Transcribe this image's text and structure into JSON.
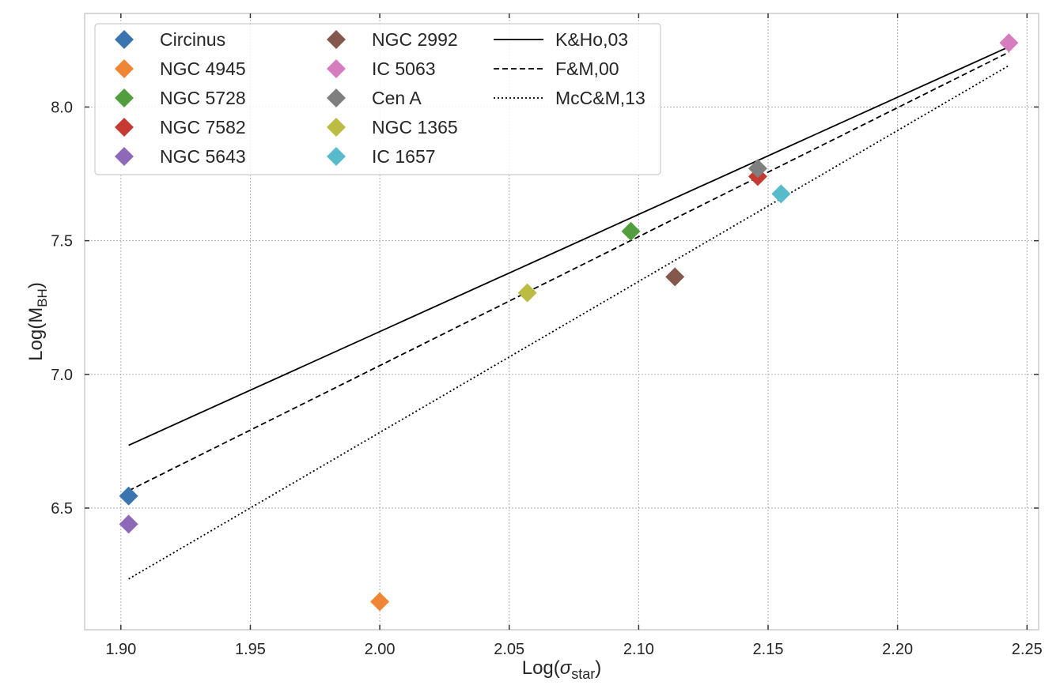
{
  "chart_data": {
    "type": "scatter",
    "title": "",
    "xlabel": {
      "main": "Log(",
      "symbol": "σ",
      "sub": "star",
      "close": ")"
    },
    "ylabel": {
      "main": "Log(M",
      "sub": "BH",
      "close": ")"
    },
    "xlim": [
      1.886,
      2.2545
    ],
    "ylim": [
      6.045,
      8.35
    ],
    "xticks": [
      1.9,
      1.95,
      2.0,
      2.05,
      2.1,
      2.15,
      2.2,
      2.25
    ],
    "xtick_labels": [
      "1.90",
      "1.95",
      "2.00",
      "2.05",
      "2.10",
      "2.15",
      "2.20",
      "2.25"
    ],
    "yticks": [
      6.5,
      7.0,
      7.5,
      8.0
    ],
    "ytick_labels": [
      "6.5",
      "7.0",
      "7.5",
      "8.0"
    ],
    "grid": true,
    "legend_position": "upper-left",
    "legend_columns": 3,
    "series": [
      {
        "name": "Circinus",
        "color": "#3a75af",
        "marker": "diamond",
        "x": 1.903,
        "y": 6.545
      },
      {
        "name": "NGC 4945",
        "color": "#ef8636",
        "marker": "diamond",
        "x": 2.0,
        "y": 6.15
      },
      {
        "name": "NGC 5728",
        "color": "#529e3e",
        "marker": "diamond",
        "x": 2.097,
        "y": 7.535
      },
      {
        "name": "NGC 7582",
        "color": "#c53a32",
        "marker": "diamond",
        "x": 2.146,
        "y": 7.74
      },
      {
        "name": "NGC 5643",
        "color": "#8d69b8",
        "marker": "diamond",
        "x": 1.903,
        "y": 6.44
      },
      {
        "name": "NGC 2992",
        "color": "#85584e",
        "marker": "diamond",
        "x": 2.114,
        "y": 7.365
      },
      {
        "name": "IC 5063",
        "color": "#d57dbe",
        "marker": "diamond",
        "x": 2.243,
        "y": 8.24
      },
      {
        "name": "Cen A",
        "color": "#7f7f7f",
        "marker": "diamond",
        "x": 2.146,
        "y": 7.77
      },
      {
        "name": "NGC 1365",
        "color": "#bcbc45",
        "marker": "diamond",
        "x": 2.057,
        "y": 7.305
      },
      {
        "name": "IC 1657",
        "color": "#58bbcc",
        "marker": "diamond",
        "x": 2.155,
        "y": 7.675
      }
    ],
    "lines": [
      {
        "name": "K&Ho,03",
        "style": "solid",
        "color": "#000000",
        "x": [
          1.903,
          2.243
        ],
        "y": [
          6.735,
          8.225
        ]
      },
      {
        "name": "F&M,00",
        "style": "dashed",
        "color": "#000000",
        "x": [
          1.903,
          2.243
        ],
        "y": [
          6.565,
          8.205
        ]
      },
      {
        "name": "McC&M,13",
        "style": "dotted",
        "color": "#000000",
        "x": [
          1.903,
          2.243
        ],
        "y": [
          6.235,
          8.155
        ]
      }
    ]
  }
}
